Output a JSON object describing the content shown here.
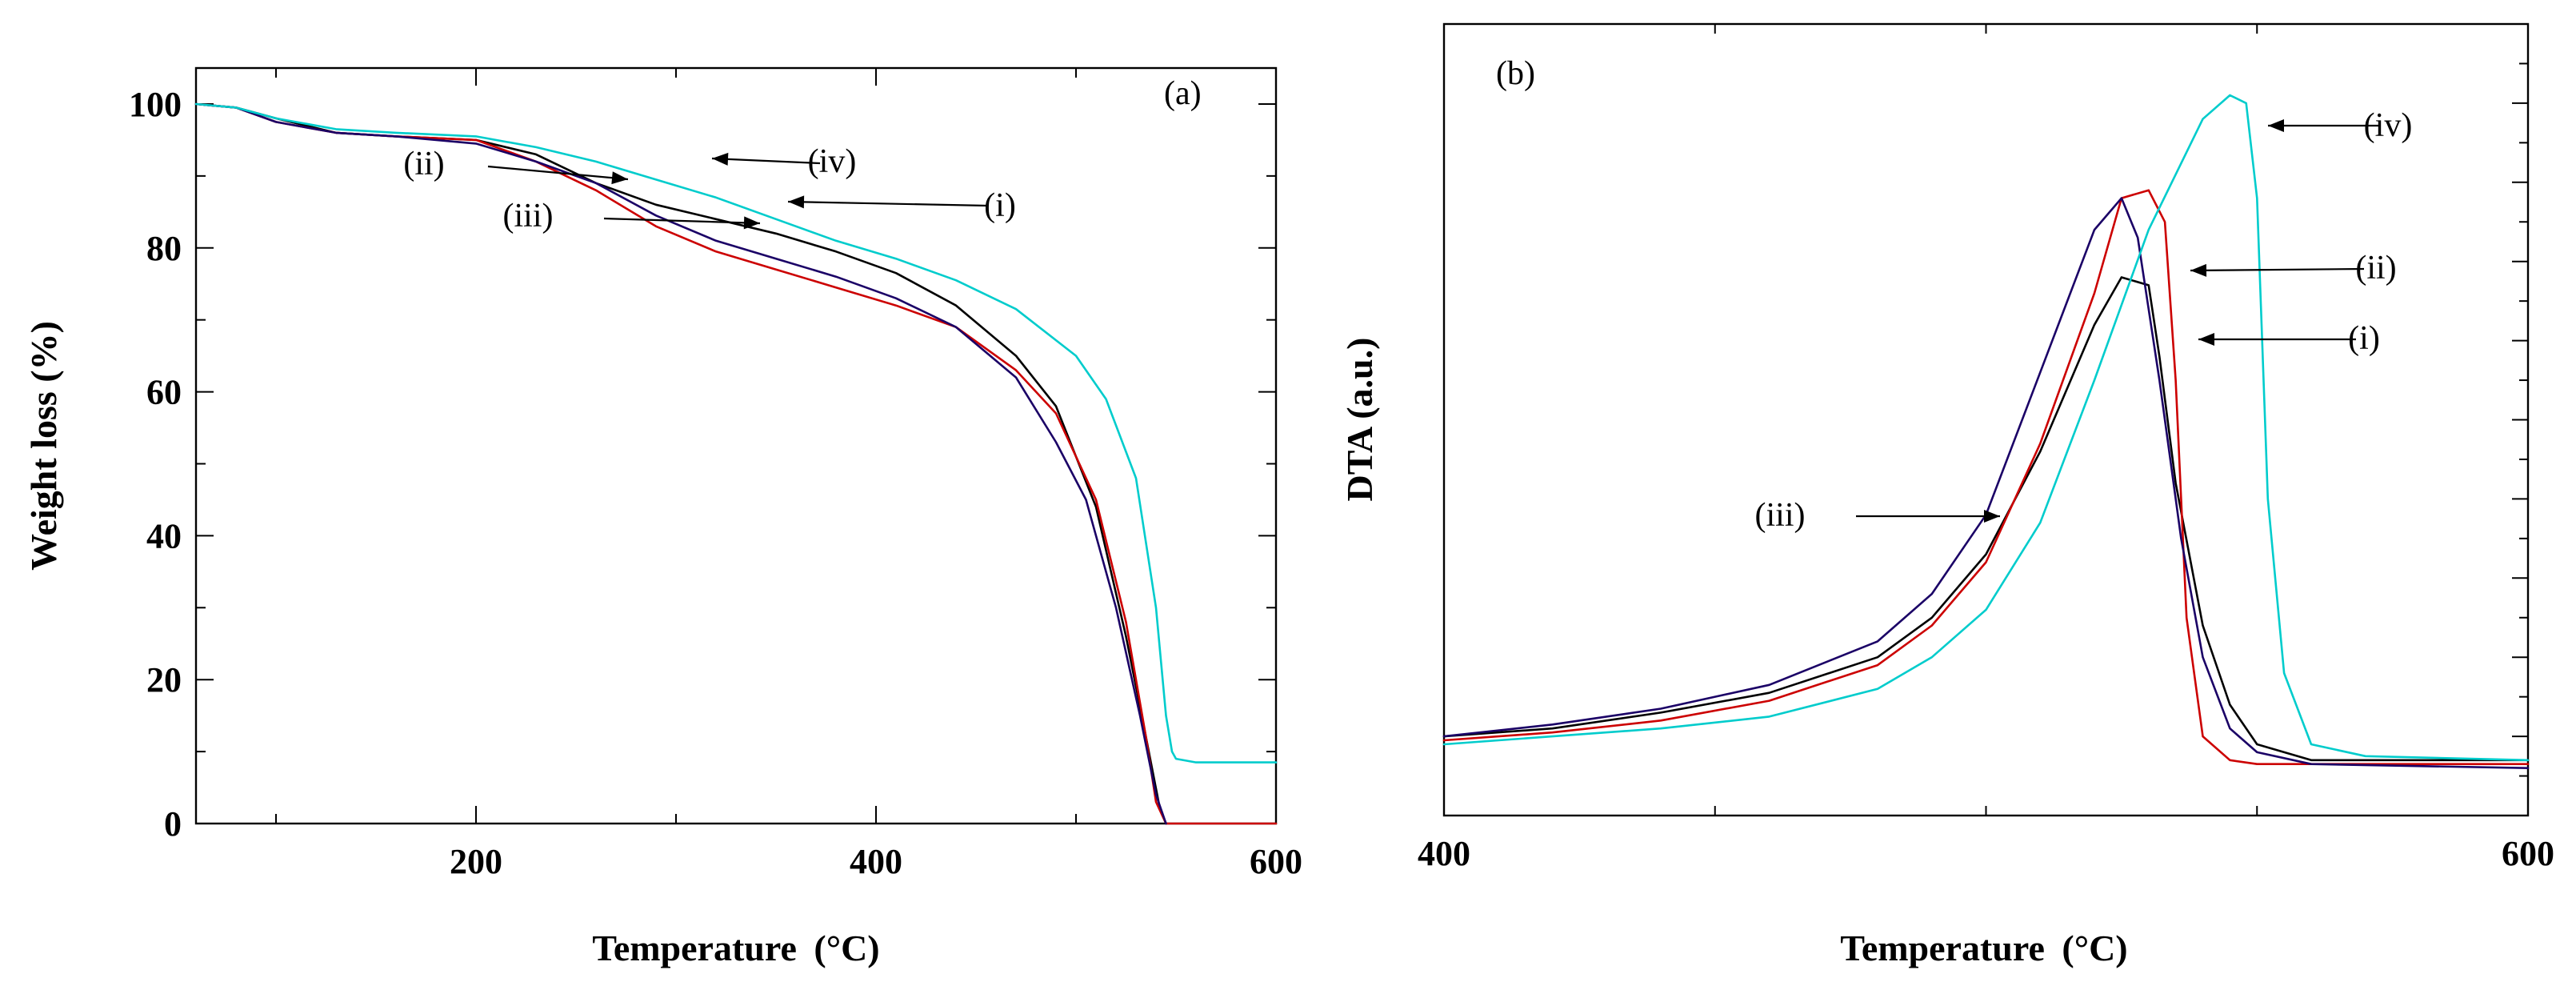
{
  "chart_data": [
    {
      "type": "line",
      "panel": "(a)",
      "xlabel": "Temperature",
      "xlabel_unit": "(°C)",
      "ylabel": "Weight loss (%)",
      "xlim": [
        60,
        600
      ],
      "ylim": [
        0,
        105
      ],
      "xticks": [
        200,
        400,
        600
      ],
      "yticks": [
        0,
        20,
        40,
        60,
        80,
        100
      ],
      "series": [
        {
          "name": "(i)",
          "color": "#000000",
          "x": [
            60,
            80,
            100,
            130,
            160,
            200,
            230,
            260,
            290,
            320,
            350,
            380,
            410,
            440,
            470,
            490,
            510,
            525,
            535,
            542,
            545
          ],
          "y": [
            100,
            99.5,
            98,
            96,
            95.5,
            95,
            93,
            89,
            86,
            84,
            82,
            79.5,
            76.5,
            72,
            65,
            58,
            44,
            26,
            12,
            2,
            0
          ]
        },
        {
          "name": "(ii)",
          "color": "#cc0000",
          "x": [
            60,
            80,
            100,
            130,
            160,
            200,
            230,
            260,
            290,
            320,
            350,
            380,
            410,
            440,
            470,
            490,
            510,
            525,
            535,
            540,
            545,
            600
          ],
          "y": [
            100,
            99.5,
            97.5,
            96,
            95.5,
            95,
            92,
            88,
            83,
            79.5,
            77,
            74.5,
            72,
            69,
            63,
            57,
            45,
            28,
            12,
            3,
            0,
            0
          ]
        },
        {
          "name": "(iii)",
          "color": "#1a0066",
          "x": [
            60,
            80,
            100,
            130,
            160,
            200,
            230,
            260,
            290,
            320,
            350,
            380,
            410,
            440,
            470,
            490,
            505,
            520,
            532,
            540,
            545
          ],
          "y": [
            100,
            99.5,
            97.5,
            96,
            95.5,
            94.5,
            92,
            89,
            84.5,
            81,
            78.5,
            76,
            73,
            69,
            62,
            53,
            45,
            30,
            15,
            4,
            0
          ]
        },
        {
          "name": "(iv)",
          "color": "#00cccc",
          "x": [
            60,
            80,
            100,
            130,
            160,
            200,
            230,
            260,
            290,
            320,
            350,
            380,
            410,
            440,
            470,
            500,
            515,
            530,
            540,
            545,
            548,
            550,
            560,
            580,
            600
          ],
          "y": [
            100,
            99.5,
            98,
            96.5,
            96,
            95.5,
            94,
            92,
            89.5,
            87,
            84,
            81,
            78.5,
            75.5,
            71.5,
            65,
            59,
            48,
            30,
            15,
            10,
            9,
            8.5,
            8.5,
            8.5
          ]
        }
      ],
      "annotations": [
        {
          "text": "(i)"
        },
        {
          "text": "(ii)"
        },
        {
          "text": "(iii)"
        },
        {
          "text": "(iv)"
        }
      ]
    },
    {
      "type": "line",
      "panel": "(b)",
      "xlabel": "Temperature",
      "xlabel_unit": "(°C)",
      "ylabel": "DTA (a.u.)",
      "xlim": [
        400,
        600
      ],
      "ylim": [
        0,
        100
      ],
      "xticks": [
        400,
        600
      ],
      "series": [
        {
          "name": "(i)",
          "color": "#000000",
          "x": [
            400,
            420,
            440,
            460,
            480,
            490,
            500,
            510,
            520,
            525,
            530,
            532,
            535,
            540,
            545,
            550,
            560,
            600
          ],
          "y": [
            10,
            11,
            13,
            15.5,
            20,
            25,
            33,
            46,
            62,
            68,
            67,
            58,
            42,
            24,
            14,
            9,
            7,
            7
          ]
        },
        {
          "name": "(ii)",
          "color": "#cc0000",
          "x": [
            400,
            420,
            440,
            460,
            480,
            490,
            500,
            510,
            520,
            525,
            530,
            533,
            535,
            537,
            540,
            545,
            550,
            600
          ],
          "y": [
            9.5,
            10.5,
            12,
            14.5,
            19,
            24,
            32,
            47,
            66,
            78,
            79,
            75,
            55,
            25,
            10,
            7,
            6.5,
            6.5
          ]
        },
        {
          "name": "(iii)",
          "color": "#1a0066",
          "x": [
            400,
            420,
            440,
            460,
            480,
            490,
            500,
            510,
            520,
            525,
            528,
            532,
            536,
            540,
            545,
            550,
            560,
            600
          ],
          "y": [
            10,
            11.5,
            13.5,
            16.5,
            22,
            28,
            38,
            56,
            74,
            78,
            73,
            55,
            35,
            20,
            11,
            8,
            6.5,
            6
          ]
        },
        {
          "name": "(iv)",
          "color": "#00cccc",
          "x": [
            400,
            420,
            440,
            460,
            480,
            490,
            500,
            510,
            520,
            530,
            540,
            545,
            548,
            550,
            552,
            555,
            560,
            570,
            600
          ],
          "y": [
            9,
            10,
            11,
            12.5,
            16,
            20,
            26,
            37,
            55,
            74,
            88,
            91,
            90,
            78,
            40,
            18,
            9,
            7.5,
            7
          ]
        }
      ],
      "annotations": [
        {
          "text": "(i)"
        },
        {
          "text": "(ii)"
        },
        {
          "text": "(iii)"
        },
        {
          "text": "(iv)"
        }
      ]
    }
  ]
}
